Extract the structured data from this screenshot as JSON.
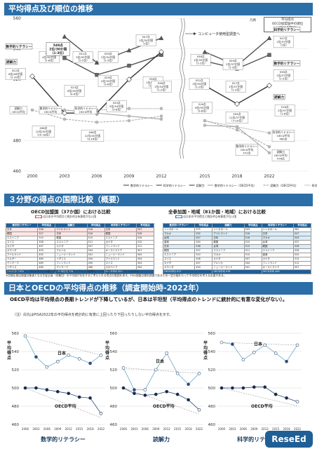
{
  "sections": {
    "s1_title": "平均得点及び順位の推移",
    "s2_title": "３分野の得点の国際比較（概要）",
    "s3_title": "日本とOECDの平均得点の推移（調査開始時-2022年）"
  },
  "legend_box": {
    "label": "凡例",
    "line1": "平均得点",
    "line2": "OECD加盟国中の順位",
    "line3": "〔順位の範囲〕"
  },
  "computer_note": "コンピュータ使用型調査へ",
  "main_chart_series": {
    "math": "数学的リテラシー",
    "science": "科学的リテラシー",
    "reading": "読解力",
    "math_oecd": "数学的リテラシー（OECD平均）",
    "reading_oecd": "読解力（OECD平均）",
    "science_oecd": "科学的リテラシー（OECD平均）"
  },
  "main_chart_labels": [
    {
      "id": "m2000",
      "text": "数学的リテラシー"
    },
    {
      "id": "r2000",
      "text": "読解力"
    },
    {
      "id": "r2000v",
      "text": "522点 8位/28か国 〔2-10位〕"
    },
    {
      "id": "m2003",
      "text": "534点 4位/30か国 〔2-8位〕"
    },
    {
      "id": "s2003",
      "text": "548点 2位/30か国 〔1-3位〕"
    },
    {
      "id": "r2003",
      "text": "498点 12位/30か国 〔10-18位〕"
    },
    {
      "id": "m2006",
      "text": "523点 6位/30か国 〔4-9位〕"
    },
    {
      "id": "s2006",
      "text": "531点 3位/30か国 〔2-5位〕"
    },
    {
      "id": "r2006",
      "text": "498点 12位/30か国 〔9-16位〕"
    },
    {
      "id": "m2009",
      "text": "529点 4位/34か国 〔3-6位〕"
    },
    {
      "id": "s2009",
      "text": "539点 2位/34か国 〔2-3位〕"
    },
    {
      "id": "r2009",
      "text": "520点 5位/34か国 〔3-6位〕"
    },
    {
      "id": "m2012",
      "text": "536点 1位/34か国 〔1-2位〕"
    },
    {
      "id": "s2012",
      "text": "547点 1位/34か国 〔1位〕"
    },
    {
      "id": "r2012",
      "text": "538点 1位/34か国 〔1-2位〕"
    },
    {
      "id": "m2015",
      "text": "532点 1位/35か国 〔1-2位〕"
    },
    {
      "id": "s2015",
      "text": "538点 1位/35か国 〔1-2位〕"
    },
    {
      "id": "r2015",
      "text": "516点 6位/35か国 〔3-8位〕"
    },
    {
      "id": "m2018",
      "text": "527点 1位/37か国 〔1-3位〕"
    },
    {
      "id": "s2018",
      "text": "529点 2位/37か国 〔1-3位〕"
    },
    {
      "id": "r2018",
      "text": "504点 11位/37か国 〔7-15位〕"
    },
    {
      "id": "s2022",
      "text": "科学的リテラシー"
    },
    {
      "id": "s2022v",
      "text": "547点 1位/37か国 〔1位〕"
    },
    {
      "id": "m2022",
      "text": "数学的リテラシー"
    },
    {
      "id": "m2022v",
      "text": "536点 1位/37か国 〔1-2位〕"
    },
    {
      "id": "r2022",
      "text": "読解力"
    },
    {
      "id": "r2022v",
      "text": "516点 2位/37か国 〔1-6位〕"
    },
    {
      "id": "so2022",
      "text": "科学的リテラシー OECD平均 485点"
    },
    {
      "id": "ro2022",
      "text": "読解力 OECD平均 476点"
    },
    {
      "id": "mo2022",
      "text": "数学的リテラシー OECD平均 472点"
    },
    {
      "id": "r2000note",
      "text": "読解力 OECD平均"
    },
    {
      "id": "m2000note",
      "text": "数学的リテラシー OECD平均"
    },
    {
      "id": "s2003note",
      "text": "科学的リテラシー OECD平均"
    }
  ],
  "chart_data": [
    {
      "type": "line",
      "title": "平均得点及び順位の推移",
      "x": [
        "2000",
        "2003",
        "2006",
        "2009",
        "2012",
        "2015",
        "2018",
        "2022"
      ],
      "ylim": [
        460,
        560
      ],
      "yticks": [
        460,
        480,
        500,
        520,
        540,
        560
      ],
      "grid": true,
      "legend": "bottom",
      "series": [
        {
          "name": "数学的リテラシー",
          "values": [
            null,
            534,
            523,
            529,
            536,
            532,
            527,
            536
          ],
          "color": "#555555"
        },
        {
          "name": "科学的リテラシー",
          "values": [
            null,
            548,
            531,
            539,
            547,
            538,
            529,
            547
          ],
          "color": "#555555"
        },
        {
          "name": "読解力",
          "values": [
            522,
            498,
            498,
            520,
            538,
            516,
            504,
            516
          ],
          "color": "#333333"
        },
        {
          "name": "数学的リテラシー（OECD平均）",
          "values": [
            null,
            500,
            498,
            496,
            494,
            490,
            489,
            472
          ],
          "color": "#aaaaaa"
        },
        {
          "name": "読解力（OECD平均）",
          "values": [
            500,
            494,
            492,
            493,
            496,
            493,
            487,
            476
          ],
          "color": "#aaaaaa"
        },
        {
          "name": "科学的リテラシー（OECD平均）",
          "values": [
            null,
            null,
            500,
            501,
            501,
            493,
            489,
            485
          ],
          "color": "#aaaaaa"
        }
      ]
    },
    {
      "type": "line",
      "title": "数学的リテラシー",
      "x": [
        "2000",
        "2003",
        "2006",
        "2009",
        "2012",
        "2015",
        "2018",
        "2022"
      ],
      "ylim": [
        460,
        560
      ],
      "series": [
        {
          "name": "日本",
          "values": [
            557,
            534,
            523,
            529,
            536,
            532,
            527,
            536
          ]
        },
        {
          "name": "OECD平均",
          "values": [
            500,
            500,
            498,
            496,
            494,
            490,
            489,
            472
          ]
        }
      ]
    },
    {
      "type": "line",
      "title": "読解力",
      "x": [
        "2000",
        "2003",
        "2006",
        "2009",
        "2012",
        "2015",
        "2018",
        "2022"
      ],
      "ylim": [
        460,
        560
      ],
      "series": [
        {
          "name": "日本",
          "values": [
            522,
            498,
            498,
            520,
            538,
            516,
            504,
            516
          ]
        },
        {
          "name": "OECD平均",
          "values": [
            500,
            494,
            492,
            493,
            496,
            493,
            487,
            476
          ]
        }
      ]
    },
    {
      "type": "line",
      "title": "科学的リテラシー",
      "x": [
        "2000",
        "2003",
        "2006",
        "2009",
        "2012",
        "2015",
        "2018",
        "2022"
      ],
      "ylim": [
        460,
        560
      ],
      "series": [
        {
          "name": "日本",
          "values": [
            550,
            548,
            531,
            539,
            547,
            538,
            529,
            547
          ]
        },
        {
          "name": "OECD平均",
          "values": [
            500,
            500,
            500,
            501,
            501,
            493,
            489,
            485
          ]
        }
      ]
    }
  ],
  "comparison": {
    "oecd_title": "OECD加盟国（37か国）における比較",
    "oecd_note": "は日本の平均得点と統計的な有意差がない国",
    "all_title": "全参加国・地域（81か国・地域）における比較",
    "all_note": "は日本の平均得点と統計的な有意差がない国",
    "col_headers": [
      "数学的リテラシー",
      "平均得点",
      "読解力",
      "平均得点",
      "科学的リテラシー",
      "平均得点"
    ],
    "oecd_rows": [
      [
        "日本",
        "536",
        "アイルランド",
        "516",
        "日本",
        "547"
      ],
      [
        "韓国",
        "527",
        "日本",
        "516",
        "韓国",
        "528"
      ],
      [
        "エストニア",
        "510",
        "韓国",
        "515",
        "エストニア",
        "526"
      ],
      [
        "スイス",
        "508",
        "エストニア",
        "511",
        "カナダ",
        "515"
      ],
      [
        "カナダ",
        "497",
        "カナダ",
        "507",
        "フィンランド",
        "511"
      ],
      [
        "オランダ",
        "493",
        "アメリカ",
        "504",
        "オーストラリア",
        "507"
      ],
      [
        "アイルランド",
        "492",
        "ニュージーランド",
        "501",
        "ニュージーランド",
        "504"
      ],
      [
        "ベルギー",
        "489",
        "イギリス",
        "494",
        "アイルランド",
        "504"
      ],
      [
        "デンマーク",
        "489",
        "フィンランド",
        "490",
        "スイス",
        "503"
      ],
      [
        "イギリス",
        "489",
        "デンマーク",
        "489",
        "スロベニア",
        "500"
      ]
    ],
    "all_rows": [
      [
        "シンガポール",
        "575",
        "シンガポール",
        "543",
        "シンガポール",
        "561"
      ],
      [
        "マカオ",
        "552",
        "アイルランド",
        "516",
        "日本",
        "547"
      ],
      [
        "台湾",
        "547",
        "日本",
        "516",
        "マカオ",
        "543"
      ],
      [
        "香港",
        "540",
        "韓国",
        "515",
        "台湾",
        "537"
      ],
      [
        "日本",
        "536",
        "台湾",
        "515",
        "韓国",
        "528"
      ],
      [
        "韓国",
        "527",
        "エストニア",
        "511",
        "エストニア",
        "526"
      ],
      [
        "エストニア",
        "510",
        "マカオ",
        "510",
        "香港",
        "520"
      ],
      [
        "スイス",
        "508",
        "カナダ",
        "507",
        "カナダ",
        "515"
      ],
      [
        "カナダ",
        "497",
        "アメリカ",
        "504",
        "フィンランド",
        "511"
      ],
      [
        "オランダ",
        "493",
        "ニュージーランド",
        "501",
        "オーストラリア",
        "507"
      ]
    ],
    "oecd_footer": [
      "OECD平均 472",
      "OECD平均 476",
      "OECD平均 485"
    ],
    "all_footer": [
      "OECD平均 472",
      "OECD平均 476",
      "OECD平均 485"
    ],
    "footnote1": "※国名の後に「＊」が付されている国・地域は、PISAのサンプリング基準を一つ以上満たしていないことを示す。",
    "footnote2": "※信頼区間は調査対象者となる生徒全員（母集団）の平均値が存在すると考えられる得点の範囲を表す。PISA調査は標本調査であるため一定の幅をもって平均得点を考える必要がある。"
  },
  "trend": {
    "headline": "OECD平均は平均得点の長期トレンドが下降しているが、日本は平坦型（平均得点のトレンドに統計的に有意な変化がない）。",
    "note": "（注）白丸はPISA2022年の平均得点を統計的に有意に上回ったり下回ったりしない平均得点を示す。",
    "ylabel": "平均得点",
    "japan": "日本",
    "oecd": "OECD平均",
    "titles": [
      "数学的リテラシー",
      "読解力",
      "科学的リテラシー"
    ]
  },
  "logo": "ReseEd"
}
